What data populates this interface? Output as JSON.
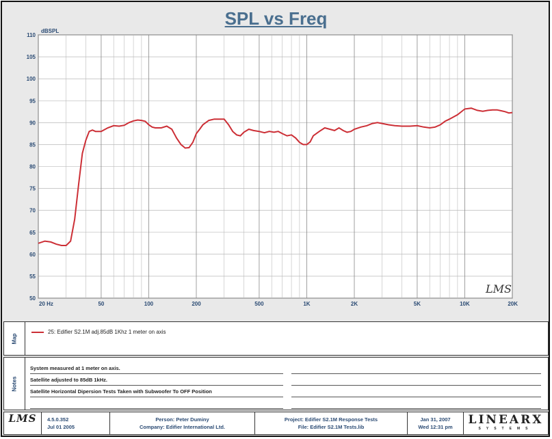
{
  "title": "SPL vs Freq",
  "chart_data": {
    "type": "line",
    "ylabel": "dBSPL",
    "xscale": "log",
    "xlim": [
      20,
      20000
    ],
    "ylim": [
      50,
      110
    ],
    "grid": true,
    "yticks": [
      50,
      55,
      60,
      65,
      70,
      75,
      80,
      85,
      90,
      95,
      100,
      105,
      110
    ],
    "xtick_labels": [
      {
        "value": 20,
        "label": "20  Hz"
      },
      {
        "value": 50,
        "label": "50"
      },
      {
        "value": 100,
        "label": "100"
      },
      {
        "value": 200,
        "label": "200"
      },
      {
        "value": 500,
        "label": "500"
      },
      {
        "value": 1000,
        "label": "1K"
      },
      {
        "value": 2000,
        "label": "2K"
      },
      {
        "value": 5000,
        "label": "5K"
      },
      {
        "value": 10000,
        "label": "10K"
      },
      {
        "value": 20000,
        "label": "20K"
      }
    ],
    "series": [
      {
        "name": "25: Edifier S2.1M adj.85dB 1Khz 1 meter on axis",
        "color": "#cc2e35",
        "x": [
          20,
          22,
          24,
          26,
          28,
          30,
          32,
          34,
          36,
          38,
          40,
          42,
          44,
          46,
          48,
          50,
          55,
          60,
          65,
          70,
          75,
          80,
          85,
          90,
          95,
          100,
          105,
          110,
          120,
          130,
          140,
          150,
          160,
          170,
          180,
          190,
          200,
          210,
          220,
          240,
          260,
          280,
          300,
          320,
          340,
          360,
          380,
          400,
          430,
          460,
          500,
          540,
          580,
          620,
          660,
          700,
          750,
          800,
          850,
          900,
          950,
          1000,
          1050,
          1100,
          1200,
          1300,
          1400,
          1500,
          1600,
          1700,
          1800,
          1900,
          2000,
          2200,
          2400,
          2600,
          2800,
          3000,
          3300,
          3600,
          4000,
          4500,
          5000,
          5500,
          6000,
          6500,
          7000,
          7500,
          8000,
          9000,
          10000,
          11000,
          12000,
          13000,
          14000,
          15000,
          16000,
          17000,
          18000,
          19000,
          20000
        ],
        "y": [
          62.5,
          63,
          62.8,
          62.3,
          62,
          62,
          63,
          68,
          76,
          83,
          86,
          88,
          88.3,
          88,
          88,
          88,
          88.8,
          89.3,
          89.2,
          89.4,
          90,
          90.4,
          90.6,
          90.5,
          90.3,
          89.5,
          89,
          88.8,
          88.8,
          89.2,
          88.5,
          86.5,
          85,
          84.2,
          84.3,
          85.5,
          87.5,
          88.5,
          89.5,
          90.5,
          90.8,
          90.8,
          90.8,
          89.5,
          88,
          87.2,
          87,
          87.8,
          88.5,
          88.2,
          88,
          87.7,
          88,
          87.8,
          88,
          87.5,
          87,
          87.2,
          86.5,
          85.5,
          85,
          85,
          85.6,
          87,
          88,
          88.8,
          88.5,
          88.2,
          88.8,
          88.2,
          87.8,
          88,
          88.5,
          89,
          89.3,
          89.8,
          90,
          89.8,
          89.5,
          89.3,
          89.2,
          89.2,
          89.3,
          89,
          88.8,
          89,
          89.5,
          90.3,
          90.8,
          91.8,
          93.1,
          93.3,
          92.8,
          92.6,
          92.8,
          92.9,
          92.9,
          92.7,
          92.5,
          92.2,
          92.3
        ]
      }
    ]
  },
  "logo_text": "LMS",
  "map_label": "Map",
  "notes_label": "Notes",
  "notes": [
    "System measured at 1 meter on axis.",
    "Satellite adjusted to 85dB 1kHz.",
    "Satellite Horizontal Dipersion Tests Taken with Subwoofer To OFF Position"
  ],
  "footer": {
    "logo": "LMS",
    "version": "4.5.0.352",
    "version_date": "Jul 01 2005",
    "person": "Person: Peter Duminy",
    "company": "Company: Edifier International Ltd.",
    "project": "Project: Edifier S2.1M Response Tests",
    "file": "File: Edifier S2.1M Tests.lib",
    "date": "Jan 31, 2007",
    "time": "Wed 12:31 pm",
    "brand": "LINEARX",
    "brand_sub": "SYSTEMS"
  }
}
